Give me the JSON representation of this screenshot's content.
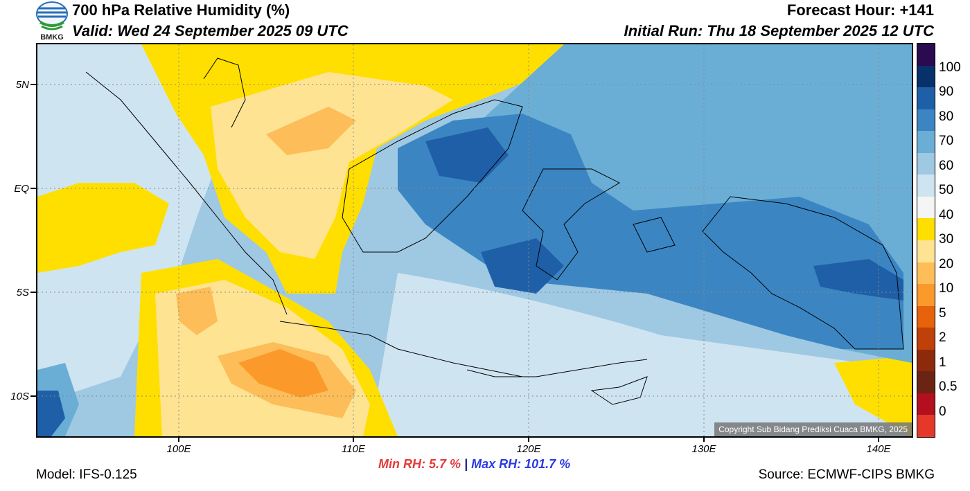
{
  "header": {
    "title": "700 hPa Relative Humidity (%)",
    "valid": "Valid: Wed 24 September 2025 09 UTC",
    "forecast_hour": "Forecast Hour: +141",
    "initial_run": "Initial Run: Thu 18 September 2025 12 UTC"
  },
  "logo": {
    "text": "BMKG"
  },
  "map": {
    "lat_labels": [
      "5N",
      "EQ",
      "5S",
      "10S"
    ],
    "lon_labels": [
      "100E",
      "110E",
      "120E",
      "130E",
      "140E"
    ],
    "copyright": "Copyright Sub Bidang Prediksi Cuaca BMKG, 2025",
    "colors": {
      "sea_base": "#9fc8e3",
      "very_humid": "#1f5fa8",
      "humid": "#3b86c2",
      "moist": "#6aaed6",
      "mid": "#cfe4f1",
      "dry_yellow": "#ffdf00",
      "drier": "#fde392",
      "dry_orange": "#fdbd58",
      "driest": "#fb9a2b",
      "coast": "#000000"
    }
  },
  "colorbar": {
    "labels": [
      "100",
      "90",
      "80",
      "70",
      "60",
      "50",
      "40",
      "30",
      "20",
      "10",
      "5",
      "2",
      "1",
      "0.5",
      "0"
    ],
    "colors": [
      "#2b0a4f",
      "#08306b",
      "#1f5fa8",
      "#3b86c2",
      "#6aaed6",
      "#9fc8e3",
      "#cfe4f1",
      "#f5f5f5",
      "#ffdf00",
      "#fde392",
      "#fdbd58",
      "#fb9a2b",
      "#e6620b",
      "#c0400a",
      "#8e2a0c",
      "#6b2313",
      "#b30f1f",
      "#e6372b"
    ]
  },
  "stats": {
    "min_label": "Min RH:",
    "min_value": "5.7 %",
    "separator": "|",
    "max_label": "Max RH:",
    "max_value": "101.7 %"
  },
  "footer": {
    "model": "Model: IFS-0.125",
    "source": "Source: ECMWF-CIPS BMKG"
  }
}
